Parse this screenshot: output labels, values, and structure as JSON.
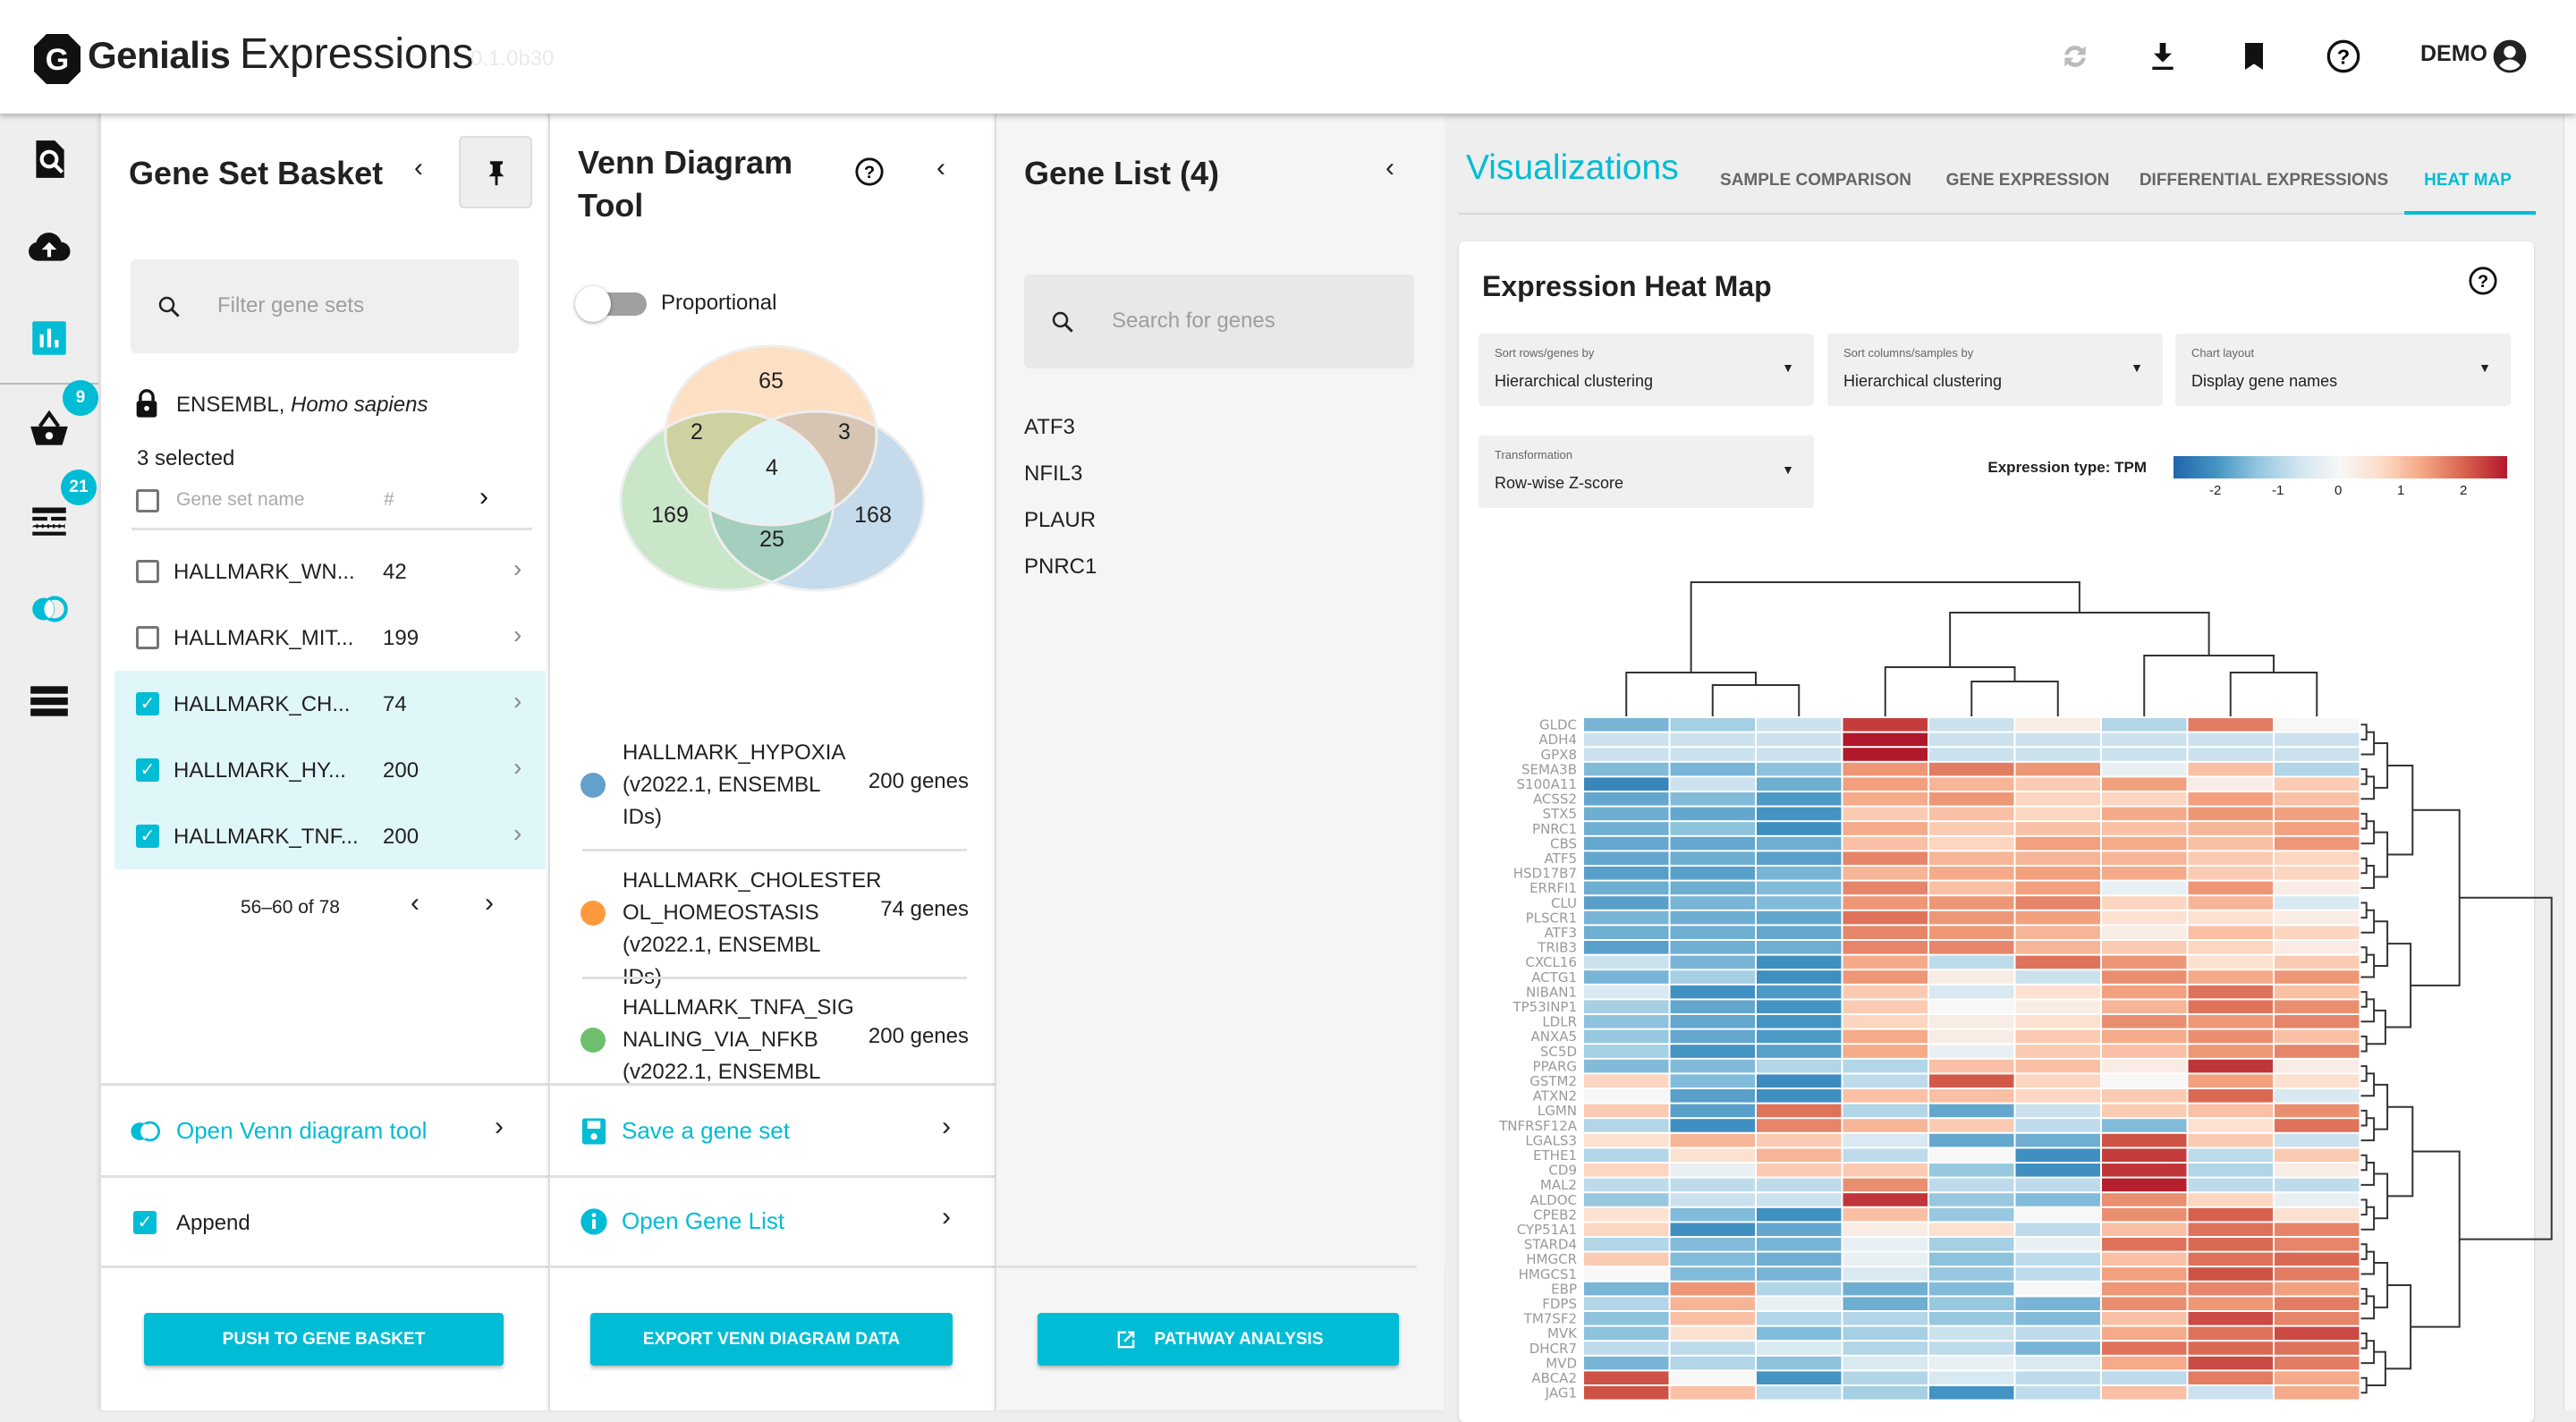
{
  "header": {
    "brand": "Genialis",
    "app_name": "Expressions",
    "version": "0.1.0b30",
    "icons": [
      "refresh-icon",
      "download-icon",
      "bookmark-icon",
      "help-icon"
    ],
    "user": "DEMO"
  },
  "rail": {
    "items": [
      "search-document-icon",
      "cloud-upload-icon",
      "bar-chart-icon",
      "basket-icon",
      "gene-sets-icon",
      "venn-icon",
      "list-icon"
    ],
    "basket_badge": "9",
    "gene_sets_badge": "21",
    "accent": "#00bcd4"
  },
  "basket": {
    "title": "Gene Set Basket",
    "filter_placeholder": "Filter gene sets",
    "source": "ENSEMBL,",
    "species": "Homo sapiens",
    "selected": "3 selected",
    "col_name": "Gene set name",
    "col_count": "#",
    "rows": [
      {
        "name": "HALLMARK_WN...",
        "count": "42",
        "checked": false
      },
      {
        "name": "HALLMARK_MIT...",
        "count": "199",
        "checked": false
      },
      {
        "name": "HALLMARK_CH...",
        "count": "74",
        "checked": true
      },
      {
        "name": "HALLMARK_HY...",
        "count": "200",
        "checked": true
      },
      {
        "name": "HALLMARK_TNF...",
        "count": "200",
        "checked": true
      }
    ],
    "pagination": "56–60 of 78",
    "open_venn": "Open Venn diagram tool",
    "append": "Append",
    "push_button": "PUSH TO GENE BASKET"
  },
  "venn": {
    "title_line1": "Venn Diagram",
    "title_line2": "Tool",
    "proportional": "Proportional",
    "proportional_on": false,
    "regions": {
      "top": "65",
      "top_left": "2",
      "top_right": "3",
      "center": "4",
      "left": "169",
      "right": "168",
      "bottom": "25"
    },
    "sets": [
      {
        "lines": [
          "HALLMARK_HYPOXIA",
          "(v2022.1, ENSEMBL",
          "IDs)"
        ],
        "count": "200 genes",
        "color": "#64a0cc"
      },
      {
        "lines": [
          "HALLMARK_CHOLESTER",
          "OL_HOMEOSTASIS",
          "(v2022.1, ENSEMBL IDs)"
        ],
        "count": "74 genes",
        "color": "#ff9a3c"
      },
      {
        "lines": [
          "HALLMARK_TNFA_SIG",
          "NALING_VIA_NFKB",
          "(v2022.1, ENSEMBL"
        ],
        "count": "200 genes",
        "color": "#6dbf6d"
      }
    ],
    "save": "Save a gene set",
    "open_gene_list": "Open Gene List",
    "export_button": "EXPORT VENN DIAGRAM DATA"
  },
  "gene_list": {
    "title": "Gene List (4)",
    "search_placeholder": "Search for genes",
    "genes": [
      "ATF3",
      "NFIL3",
      "PLAUR",
      "PNRC1"
    ],
    "pathway_button": "PATHWAY ANALYSIS"
  },
  "viz": {
    "title": "Visualizations",
    "tabs": [
      "SAMPLE COMPARISON",
      "GENE EXPRESSION",
      "DIFFERENTIAL EXPRESSIONS",
      "HEAT MAP"
    ],
    "active_tab": "HEAT MAP",
    "card_title": "Expression Heat Map",
    "dropdowns": [
      {
        "label": "Sort rows/genes by",
        "value": "Hierarchical clustering"
      },
      {
        "label": "Sort columns/samples by",
        "value": "Hierarchical clustering"
      },
      {
        "label": "Chart layout",
        "value": "Display gene names"
      },
      {
        "label": "Transformation",
        "value": "Row-wise Z-score"
      }
    ],
    "expression_type": "Expression type: TPM",
    "colorbar_ticks": [
      "-2",
      "-1",
      "0",
      "1",
      "2"
    ]
  },
  "chart_data": {
    "type": "heatmap",
    "color_scale": "RdBu (blue negative, red positive)",
    "range": [
      -2.5,
      2.5
    ],
    "rows": [
      "GLDC",
      "ADH4",
      "GPX8",
      "SEMA3B",
      "S100A11",
      "ACSS2",
      "STX5",
      "PNRC1",
      "CBS",
      "ATF5",
      "HSD17B7",
      "ERRFI1",
      "CLU",
      "PLSCR1",
      "ATF3",
      "TRIB3",
      "CXCL16",
      "ACTG1",
      "NIBAN1",
      "TP53INP1",
      "LDLR",
      "ANXA5",
      "SC5D",
      "PPARG",
      "GSTM2",
      "ATXN2",
      "LGMN",
      "TNFRSF12A",
      "LGALS3",
      "ETHE1",
      "CD9",
      "MAL2",
      "ALDOC",
      "CPEB2",
      "CYP51A1",
      "STARD4",
      "HMGCR",
      "HMGCS1",
      "EBP",
      "FDPS",
      "TM7SF2",
      "MVK",
      "DHCR7",
      "MVD",
      "ABCA2",
      "JAG1"
    ],
    "values": [
      [
        -1,
        -0.6,
        -0.3,
        2,
        -0.3,
        0.1,
        -0.5,
        1.2,
        0
      ],
      [
        -0.3,
        -0.3,
        -0.3,
        2.8,
        -0.3,
        -0.3,
        -0.3,
        -0.3,
        -0.3
      ],
      [
        -0.3,
        -0.3,
        -0.3,
        2.8,
        -0.3,
        -0.3,
        -0.3,
        -0.3,
        -0.3
      ],
      [
        -0.9,
        -1,
        -0.8,
        0.9,
        1.2,
        0.9,
        -0.1,
        0.5,
        -0.5
      ],
      [
        -1.8,
        -0.3,
        -1.1,
        0.8,
        0.6,
        0.4,
        0.8,
        0.1,
        0.4
      ],
      [
        -1.2,
        -0.9,
        -1.4,
        0.7,
        0.9,
        0.3,
        0.3,
        0.8,
        0.5
      ],
      [
        -1.1,
        -1.2,
        -1.5,
        0.4,
        0.5,
        0.3,
        0.7,
        0.9,
        0.8
      ],
      [
        -1.1,
        -0.8,
        -1.6,
        0.7,
        0.4,
        0.5,
        0.5,
        0.6,
        0.8
      ],
      [
        -1.2,
        -1.2,
        -1.1,
        0.5,
        0.3,
        0.8,
        0.7,
        0.5,
        0.9
      ],
      [
        -1.2,
        -1.1,
        -1.3,
        1.1,
        0.6,
        0.6,
        0.6,
        0.4,
        0.3
      ],
      [
        -1.3,
        -1.3,
        -1,
        0.6,
        0.7,
        0.8,
        0.7,
        0.4,
        0.3
      ],
      [
        -1.1,
        -1.1,
        -0.9,
        1.1,
        0.5,
        0.8,
        -0.1,
        0.9,
        0.1
      ],
      [
        -1.3,
        -1,
        -0.9,
        0.9,
        0.9,
        1.1,
        0.3,
        0.6,
        -0.2
      ],
      [
        -1,
        -1.1,
        -1.2,
        1.3,
        0.9,
        0.8,
        0.2,
        0.2,
        0.1
      ],
      [
        -1.1,
        -1.1,
        -1.2,
        1.1,
        0.9,
        0.6,
        0.1,
        0.5,
        0.3
      ],
      [
        -1.3,
        -1.1,
        -1.1,
        1.1,
        1.1,
        0.6,
        0.4,
        0.3,
        0.1
      ],
      [
        -0.3,
        -1,
        -1.6,
        0.7,
        -0.4,
        1.3,
        0.9,
        0.2,
        0.4
      ],
      [
        -1,
        -0.6,
        -1.6,
        0.9,
        0.1,
        -0.3,
        1,
        0.7,
        0.9
      ],
      [
        -0.2,
        -1.6,
        -1.4,
        0.4,
        -0.2,
        0.2,
        0.8,
        1.3,
        0.5
      ],
      [
        -0.6,
        -1.2,
        -1.5,
        0.4,
        0,
        0.1,
        0.6,
        1.3,
        1
      ],
      [
        -0.8,
        -1.2,
        -1.5,
        0.3,
        0.1,
        0.2,
        1,
        0.9,
        1.1
      ],
      [
        -0.7,
        -1.2,
        -1.4,
        0.7,
        0.1,
        0.4,
        0.7,
        1,
        0.5
      ],
      [
        -0.6,
        -1.5,
        -1.3,
        0.7,
        -0.1,
        0.4,
        0.5,
        0.9,
        1.1
      ],
      [
        -0.9,
        -0.9,
        -0.5,
        -0.5,
        0.5,
        0.5,
        0.1,
        2.1,
        0.1
      ],
      [
        0.3,
        -0.9,
        -1.7,
        -0.4,
        1.6,
        0.3,
        0,
        0.8,
        0.2
      ],
      [
        0,
        -1.3,
        -1.6,
        0.5,
        0.5,
        0.3,
        0.4,
        1.4,
        -0.2
      ],
      [
        0.4,
        -1.3,
        1.3,
        -0.5,
        -1.2,
        -0.3,
        0.4,
        0.5,
        1
      ],
      [
        -0.5,
        -1.6,
        1.1,
        0.6,
        0.4,
        -0.4,
        -0.9,
        0.2,
        1.3
      ],
      [
        0.2,
        0.6,
        0.4,
        -0.2,
        -1.2,
        -1.1,
        1.7,
        0.4,
        -0.3
      ],
      [
        -0.5,
        0.2,
        0.6,
        -0.4,
        0,
        -1.6,
        2,
        -0.4,
        0.4
      ],
      [
        0.3,
        -0.1,
        0.4,
        0.4,
        -0.7,
        -1.6,
        2.1,
        -0.5,
        0.1
      ],
      [
        -0.4,
        -0.4,
        -0.4,
        1,
        -0.4,
        -0.4,
        2.4,
        -0.4,
        -0.4
      ],
      [
        -0.7,
        -0.3,
        -0.3,
        2.1,
        -0.7,
        -0.9,
        1,
        0.3,
        -0.1
      ],
      [
        0.2,
        -0.9,
        -1.6,
        0.5,
        -0.7,
        0,
        1,
        1.5,
        0.2
      ],
      [
        0.3,
        -1.6,
        -1.2,
        0.1,
        0.2,
        -0.4,
        0.5,
        1.3,
        1.1
      ],
      [
        -0.5,
        -0.9,
        -1,
        -0.1,
        -0.6,
        -0.1,
        1.3,
        1.4,
        1.1
      ],
      [
        0.4,
        -0.9,
        -1.1,
        -0.1,
        -0.8,
        -0.4,
        0.5,
        1.3,
        1.4
      ],
      [
        0,
        -0.9,
        -1,
        -0.2,
        -0.7,
        -0.4,
        0.8,
        1.7,
        1.2
      ],
      [
        -1,
        0.9,
        -0.5,
        -1.1,
        -0.9,
        0,
        0.9,
        1.1,
        0.8
      ],
      [
        -0.5,
        0.6,
        -0.1,
        -1.1,
        -0.7,
        -1,
        1,
        0.9,
        1.2
      ],
      [
        -0.8,
        0.5,
        -0.5,
        -0.5,
        -0.7,
        -0.9,
        0.5,
        1.8,
        1.1
      ],
      [
        -0.8,
        0.2,
        -0.9,
        -0.6,
        -0.3,
        -0.4,
        0.7,
        1.3,
        1.8
      ],
      [
        -0.4,
        -0.4,
        -0.2,
        -0.5,
        -0.4,
        -1,
        1.3,
        1.4,
        1.3
      ],
      [
        -1,
        -0.5,
        -0.8,
        -0.2,
        -0.1,
        -0.2,
        0.7,
        1.8,
        1.2
      ],
      [
        1.7,
        0,
        -1.5,
        -0.5,
        -0.2,
        -0.4,
        -0.4,
        1.2,
        0.7
      ],
      [
        1.7,
        0.5,
        -0.4,
        -0.6,
        -1.5,
        -0.4,
        0.5,
        -0.3,
        0.7
      ]
    ],
    "column_dendrogram": "((1,(2,3)),((4,(5,6)),(7,(8,9))))"
  }
}
